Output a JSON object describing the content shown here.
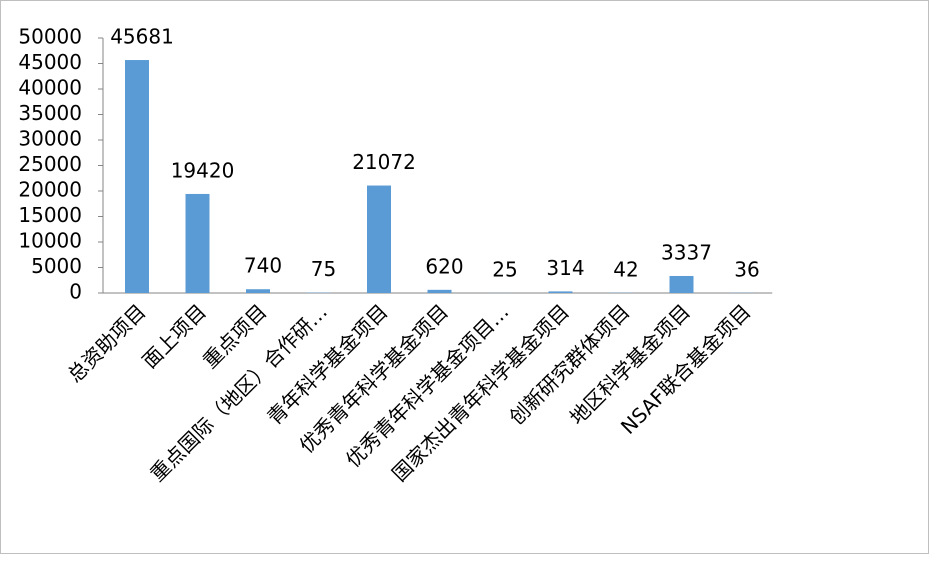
{
  "chart_data": {
    "type": "bar",
    "categories": [
      "总资助项目",
      "面上项目",
      "重点项目",
      "重点国际（地区）合作研…",
      "青年科学基金项目",
      "优秀青年科学基金项目",
      "优秀青年科学基金项目…",
      "国家杰出青年科学基金项目",
      "创新研究群体项目",
      "地区科学基金项目",
      "NSAF联合基金项目"
    ],
    "values": [
      45681,
      19420,
      740,
      75,
      21072,
      620,
      25,
      314,
      42,
      3337,
      36
    ],
    "color": "#5b9bd5",
    "ylim": [
      0,
      50000
    ],
    "yticks": [
      0,
      5000,
      10000,
      15000,
      20000,
      25000,
      30000,
      35000,
      40000,
      45000,
      50000
    ],
    "grid": false,
    "data_labels": true
  }
}
